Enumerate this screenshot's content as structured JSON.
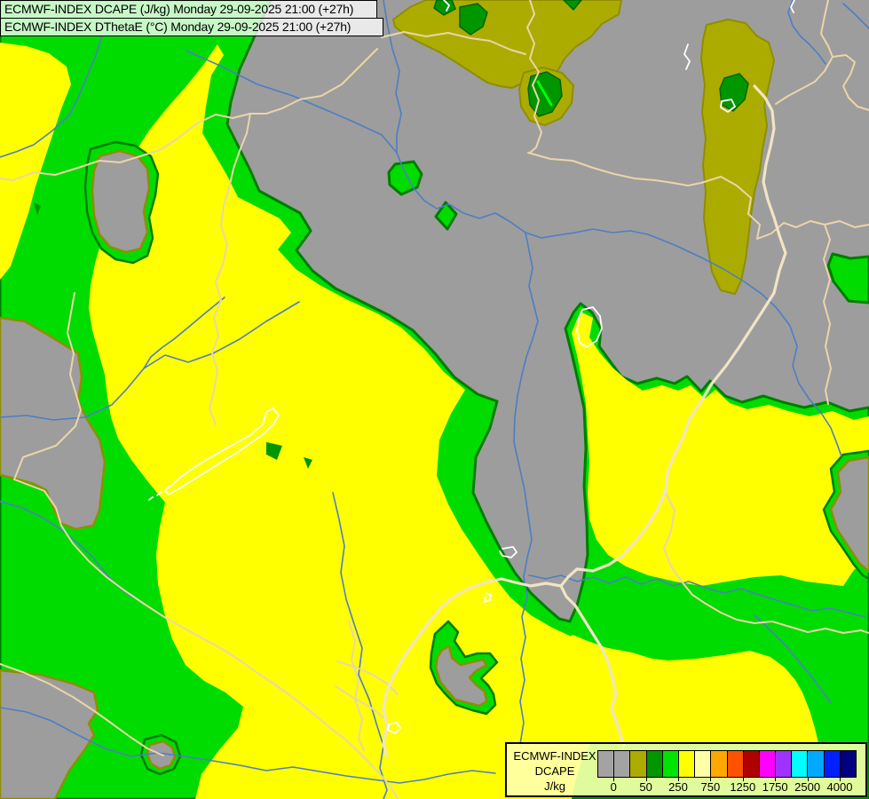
{
  "header": {
    "line1": "ECMWF-INDEX DCAPE (J/kg) Monday 29-09-2025 21:00 (+27h)",
    "line2": "ECMWF-INDEX DThetaE (°C) Monday 29-09-2025 21:00 (+27h)"
  },
  "legend": {
    "title_lines": [
      "ECMWF-INDEX",
      "DCAPE",
      "J/kg"
    ],
    "tick_labels": [
      "0",
      "50",
      "250",
      "750",
      "1250",
      "1750",
      "2500",
      "4000"
    ],
    "tick_after_swatch": [
      1,
      3,
      5,
      7,
      9,
      11,
      13,
      15
    ],
    "swatch_colors": [
      "#A3A3A3",
      "#A3A3A3",
      "#ACAC00",
      "#009600",
      "#00E400",
      "#FFFF00",
      "#FFFFA8",
      "#FFA800",
      "#FF5200",
      "#B00000",
      "#FF00FF",
      "#A032FF",
      "#00FFFF",
      "#00A8FF",
      "#0020FF",
      "#000080"
    ]
  },
  "map": {
    "colors": {
      "gray": "#9D9D9D",
      "olive": "#ACAC00",
      "olive_edge": "#8E8E00",
      "dark_green": "#009600",
      "dark_green_edge": "#006400",
      "green": "#00DC00",
      "contour": "#007C00",
      "yellow": "#FFFF00",
      "streak": "#00FF00",
      "river": "#4D7EC3",
      "border": "#EBD5A9",
      "border_thick": "#F2E4C4",
      "lake": "#FFFFFF"
    },
    "olive_regions": [
      "443,22 462,8 480,0 700,0 697,16 678,27 665,42 648,53 636,66 628,80 616,90 603,86 590,93 577,99 563,97 549,93 532,82 512,69 494,58 473,48 455,38 445,30",
      "590,82 612,76 633,82 646,96 644,116 632,133 614,141 597,136 587,120 585,100",
      "796,28 820,22 840,26 852,40 866,48 872,68 867,92 861,118 864,142 859,168 856,192 850,216 846,242 843,268 840,292 835,316 828,331 812,327 802,306 797,276 793,246 795,216 792,186 795,156 791,126 794,96 790,66 792,45"
    ],
    "dark_patches": [
      "518,8 538,4 549,14 544,30 530,39 518,30",
      "598,86 616,81 631,90 633,108 622,126 607,131 597,118 595,100",
      "816,88 833,83 843,94 839,112 826,125 813,118 811,100",
      "492,0 509,0 513,10 500,17 489,9",
      "635,0 655,0 646,11"
    ],
    "streaks": [
      "606,92 621,118"
    ],
    "green_main": "0,0 305,0 288,38 270,78 260,115 256,140 270,168 282,192 292,215 338,240 350,260 334,282 352,305 378,325 408,340 438,355 465,372 490,398 512,425 538,444 560,452 552,482 536,515 533,555 548,588 563,617 580,645 598,668 615,684 630,697 642,700 650,682 657,655 662,625 661,588 658,548 660,505 658,460 651,428 644,398 637,370 646,352 654,342 667,352 677,370 675,390 688,408 700,424 718,432 740,426 760,432 774,424 790,441 800,429 817,446 836,453 860,446 882,453 906,459 932,453 957,463 979,459 979,900 0,900",
    "yellow_regions": [
      "0,48 30,52 55,60 75,75 80,95 70,120 60,150 50,180 40,210 32,240 22,270 12,300 0,315",
      "245,50 252,62 238,85 232,120 228,150 242,174 256,198 268,222 315,246 328,262 313,281 333,303 360,321 390,337 425,353 452,369 478,393 500,419 524,439 508,466 495,496 492,536 505,568 520,596 538,623 556,649 575,673 598,693 622,707 648,719 680,729 712,735 738,743 732,767 710,784 688,805 670,829 656,855 648,881 644,900 220,900 227,872 246,846 268,820 274,796 254,780 230,767 209,749 194,720 185,690 178,658 176,624 180,594 186,566 167,543 148,518 133,494 125,470 121,447 118,422 111,397 104,372 100,347 102,322 107,297 114,272 122,247 130,222 140,197 152,172 168,147 188,122 210,97 230,72",
      "656,352 668,358 664,380 676,398 690,414 706,428 724,440 746,434 764,440 778,434 794,449 806,439 822,454 842,461 866,456 888,463 912,469 938,463 962,473 979,469 979,630 962,642 950,660 908,655 880,648 850,650 820,655 790,660 760,655 730,648 705,638 685,625 672,608 664,585 662,555 664,520 662,488 660,455 655,425 650,400 644,375 650,360",
      "575,837 582,812 592,786 604,762 616,742 630,726 645,715 662,722 690,732 720,740 752,744 784,742 815,738 845,733 868,740 884,752 896,766 904,780 912,800 918,820 922,837"
    ],
    "gray_islands": [
      {
        "outer": "490,714 505,700 516,712 512,722 524,740 538,736 552,736 560,746 548,758 542,764 550,772 556,782 558,794 548,804 532,800 514,794 502,782 492,770 485,752 486,736",
        "inner": "498,732 506,728 509,741 519,749 531,746 544,743 548,749 536,756 529,763 536,771 546,779 548,790 540,795 528,792 513,788 504,778 496,768 491,752 493,740"
      },
      {
        "outer": "",
        "inner": "0,358 28,362 52,376 88,398 92,425 88,452 98,472 112,495 118,520 115,548 112,575 105,592 85,596 68,589 60,572 52,552 38,545 20,540 0,535"
      },
      {
        "outer": "102,168 130,160 152,164 170,176 178,196 175,220 168,245 172,268 166,288 150,296 130,292 114,280 104,262 98,238 96,210 98,186",
        "inner": "112,176 135,170 155,176 166,190 168,212 162,238 166,262 158,280 142,284 124,278 112,264 106,242 104,214 106,192"
      },
      {
        "outer": "",
        "inner": "0,755 45,760 82,770 106,780 110,800 100,815 106,828 95,845 78,868 68,888 62,900 0,900"
      },
      {
        "outer": "163,833 182,828 198,836 203,852 196,866 180,872 166,866 159,850",
        "inner": "169,839 184,835 194,842 197,852 192,862 180,866 170,860 166,849"
      },
      {
        "outer": "979,508 950,512 936,528 940,554 928,574 936,598 950,618 962,636 972,648 979,652",
        "inner": "979,515 956,519 944,532 947,554 936,574 943,596 956,616 968,634 979,644"
      }
    ],
    "specks": [
      "300,498 318,502 312,518 300,512",
      "342,515 352,518 347,528",
      "38,228 46,232 42,242"
    ],
    "green_spots": [
      "445,185 466,182 475,196 470,211 452,219 439,208 438,194",
      "502,228 514,241 504,258 491,244",
      "938,286 958,291 979,289 979,341 956,339 939,317 933,299"
    ],
    "rivers": [
      "210,57 250,75 290,95 330,108 370,125 400,138 430,152 447,172 455,192 466,212 478,226 492,235 506,230 522,240 540,246 558,240 575,250 592,262 610,268 628,265 648,262 668,258 690,262 710,260 730,264 760,276 790,290 815,303 838,317 858,331 875,347 890,367 898,390 893,412 900,432 912,450 925,465 936,482 943,500 948,514",
      "432,0 436,25 442,55 450,80 446,105 452,128 447,152 447,172",
      "592,262 596,282 600,302 596,322 601,342 606,362 600,382 593,402 588,422 583,446 580,470 579,498 585,525 591,552 595,580 599,608 594,628 590,650 594,672 588,695 592,718 587,742 591,766 586,790 590,814 586,838",
      "596,648 615,652 632,648 650,655 668,650 686,657 705,650 722,658 740,652 758,660 776,655 795,662 815,668 835,663 855,670 875,676 895,682 915,688 935,685 955,690 975,695",
      "893,0 888,14 893,29 902,41 912,50 922,61 930,72",
      "950,4 961,14 971,24 979,32",
      "375,555 382,585 388,615 384,645 390,675 398,700 408,730 404,760 416,788 424,815 432,840 428,865 436,890 432,900",
      "337,340 300,362 270,382 240,398 212,408 186,400 162,415 143,438 126,456 96,470 60,473 30,468 0,470",
      "253,335 232,352 213,368 196,382 182,392 170,402 162,415",
      "115,40 108,62 98,86 88,110 78,130 58,148 38,163 18,171 0,177",
      "0,797 30,802 58,812 88,828 118,843 148,852 178,848 208,852 240,857 270,862 300,868 330,864 360,869 390,874 420,878 450,882 478,878 505,872 532,868 558,871",
      "0,565 25,572 48,583 68,596 88,612 105,628 118,645 132,660 148,672",
      "850,693 868,710 886,728 900,745 914,762 926,778 936,792"
    ],
    "borders": [
      "425,55 405,75 385,95 362,108 338,112 318,122 300,128 282,128 262,133 243,129 222,139 200,156 180,169 158,176 135,183 112,181 88,189 62,197 38,194 15,203 0,201",
      "282,128 278,150 270,170 263,190 258,212 252,232 249,254 256,276 251,298 243,318 249,338 241,358 246,378 239,398 245,418 241,440 236,460 243,478",
      "84,330 80,352 76,375 83,398 79,422 86,445 91,462 85,480 63,502 26,515 16,540 50,553 63,572 69,592 82,612 100,632 120,650 140,665 162,680 185,695 208,708 230,720 252,732 272,745 290,758 308,770 325,782 342,795 358,808 372,820 388,832 402,845 415,858 428,872 440,886 448,900",
      "933,0 929,18 925,38 933,52 938,64 929,80 918,92 903,100 888,108 874,117",
      "938,64 953,62 963,70 958,84 950,97 956,110 966,120 979,124",
      "595,172 620,179 645,181 668,189 692,196 715,201 738,203 758,206 775,209 790,206 812,199 830,209 846,223 843,241 856,253 853,269 869,263 883,251 897,256 913,249 929,253 946,249 963,256 979,253",
      "597,0 602,16 594,31 602,49 597,66 607,81 600,96 607,113 602,131 610,149 604,166 597,172",
      "430,42 455,36 480,41 505,37 530,43 552,46 575,56 592,61",
      "929,253 935,270 928,292 935,315 928,340 935,365 930,390 936,415 930,440 933,455",
      "750,555 760,575 756,598 748,618 756,638 768,655 780,670 795,680 812,690 830,698 850,702 870,700 890,706 910,712 930,708 950,713 970,710 979,713",
      "393,700 400,722 396,744 404,766 400,788 408,810 404,832 410,845",
      "380,745 402,752 420,760 436,770 448,782",
      "378,773 398,786 418,797 432,808",
      "0,748 28,758 55,770 82,785 105,800 126,815 148,831 166,843 184,851"
    ],
    "borders_thick": [
      "850,97 862,110 870,125 872,145 868,165 863,185 860,205 865,225 872,245 878,265 885,285 878,305 872,330 858,352 845,372 832,392 818,412 802,432 790,452 777,472 770,492 760,512 752,532 750,552 742,572 730,592 716,610 701,626 686,636 668,643 650,641 640,650 632,660",
      "632,660 638,672 648,682 658,698 668,714 678,730 686,748 690,764 694,781 689,798 694,812 699,828 703,840",
      "632,660 615,657 598,660 580,656 565,652 548,656 530,662 512,672 498,683 488,695 478,708 466,724 454,742 444,760 436,778 432,798 436,818 432,838 436,852"
    ],
    "lakes": [
      "314,468 308,460 300,464 296,478 282,490 266,499 250,508 234,517 218,527 204,537 194,546 186,552 190,557 204,549 220,539 236,529 252,519 268,509 284,498 298,488 308,478 314,468",
      "182,554 177,558",
      "172,560 168,563",
      "656,349 668,346 676,356 678,370 672,384 661,391 653,386 650,372 652,358 656,349",
      "566,618 578,616 582,622 576,628 566,626 563,621",
      "775,50 771,61 777,69 773,78",
      "813,114 824,112 828,120 820,126 812,121 813,114",
      "438,816 447,814 451,820 445,826 437,822 438,816",
      "547,668 553,670 552,676 546,678 547,672",
      "895,0 891,8 894,14",
      "500,0 506,6 503,12"
    ]
  }
}
